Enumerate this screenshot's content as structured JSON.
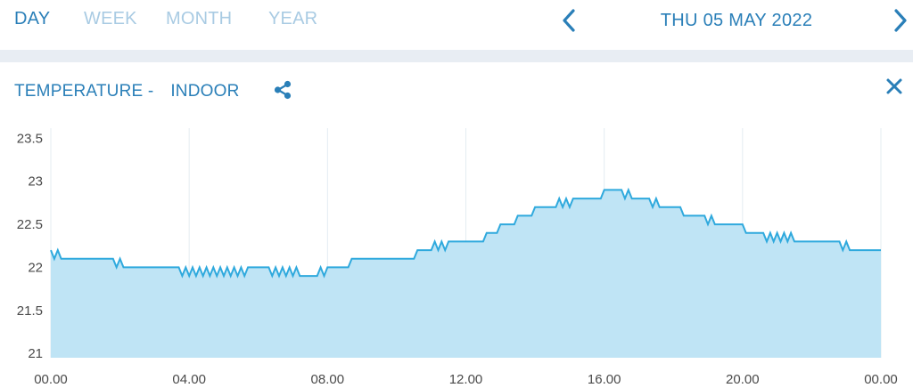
{
  "tabs": [
    {
      "label": "DAY",
      "active": true
    },
    {
      "label": "WEEK",
      "active": false
    },
    {
      "label": "MONTH",
      "active": false
    },
    {
      "label": "YEAR",
      "active": false
    }
  ],
  "date": "THU 05 MAY 2022",
  "card": {
    "title_part1": "TEMPERATURE - ",
    "title_part2": "INDOOR"
  },
  "icons": {
    "prev": "chevron-left-icon",
    "next": "chevron-right-icon",
    "share": "share-icon",
    "close": "close-icon"
  },
  "colors": {
    "accent": "#2a7fb8",
    "inactive_tab": "#a9cbe3",
    "line": "#2fa9dd",
    "fill": "#bfe4f5",
    "separator": "#e8edf3"
  },
  "chart_data": {
    "type": "area",
    "title": "",
    "xlabel": "",
    "ylabel": "",
    "x_ticks": [
      "00.00",
      "04.00",
      "08.00",
      "12.00",
      "16.00",
      "20.00",
      "00.00"
    ],
    "y_ticks": [
      "21",
      "21.5",
      "22",
      "22.5",
      "23",
      "23.5"
    ],
    "xlim": [
      0,
      24
    ],
    "ylim": [
      20.95,
      23.7
    ],
    "grid": "vertical",
    "series": [
      {
        "values": [
          [
            0,
            22.2
          ],
          [
            0.1,
            22.1
          ],
          [
            0.2,
            22.2
          ],
          [
            0.3,
            22.1
          ],
          [
            1.8,
            22.1
          ],
          [
            1.9,
            22.0
          ],
          [
            2.0,
            22.1
          ],
          [
            2.1,
            22.0
          ],
          [
            3.7,
            22.0
          ],
          [
            3.8,
            21.9
          ],
          [
            3.9,
            22.0
          ],
          [
            4.0,
            21.9
          ],
          [
            4.1,
            22.0
          ],
          [
            4.2,
            21.9
          ],
          [
            4.3,
            22.0
          ],
          [
            4.4,
            21.9
          ],
          [
            4.5,
            22.0
          ],
          [
            4.6,
            21.9
          ],
          [
            4.7,
            22.0
          ],
          [
            4.8,
            21.9
          ],
          [
            4.9,
            22.0
          ],
          [
            5.0,
            21.9
          ],
          [
            5.1,
            22.0
          ],
          [
            5.2,
            21.9
          ],
          [
            5.3,
            22.0
          ],
          [
            5.4,
            21.9
          ],
          [
            5.5,
            22.0
          ],
          [
            5.6,
            21.9
          ],
          [
            5.7,
            22.0
          ],
          [
            6.3,
            22.0
          ],
          [
            6.4,
            21.9
          ],
          [
            6.5,
            22.0
          ],
          [
            6.6,
            21.9
          ],
          [
            6.7,
            22.0
          ],
          [
            6.8,
            21.9
          ],
          [
            6.9,
            22.0
          ],
          [
            7.0,
            21.9
          ],
          [
            7.1,
            22.0
          ],
          [
            7.2,
            21.9
          ],
          [
            7.7,
            21.9
          ],
          [
            7.8,
            22.0
          ],
          [
            7.9,
            21.9
          ],
          [
            8.0,
            22.0
          ],
          [
            8.6,
            22.0
          ],
          [
            8.7,
            22.1
          ],
          [
            10.5,
            22.1
          ],
          [
            10.6,
            22.2
          ],
          [
            11.0,
            22.2
          ],
          [
            11.1,
            22.3
          ],
          [
            11.2,
            22.2
          ],
          [
            11.3,
            22.3
          ],
          [
            11.4,
            22.2
          ],
          [
            11.5,
            22.3
          ],
          [
            12.5,
            22.3
          ],
          [
            12.6,
            22.4
          ],
          [
            12.9,
            22.4
          ],
          [
            13.0,
            22.5
          ],
          [
            13.4,
            22.5
          ],
          [
            13.5,
            22.6
          ],
          [
            13.9,
            22.6
          ],
          [
            14.0,
            22.7
          ],
          [
            14.6,
            22.7
          ],
          [
            14.7,
            22.8
          ],
          [
            14.8,
            22.7
          ],
          [
            14.9,
            22.8
          ],
          [
            15.0,
            22.7
          ],
          [
            15.1,
            22.8
          ],
          [
            15.9,
            22.8
          ],
          [
            16.0,
            22.9
          ],
          [
            16.5,
            22.9
          ],
          [
            16.6,
            22.8
          ],
          [
            16.7,
            22.9
          ],
          [
            16.8,
            22.8
          ],
          [
            17.3,
            22.8
          ],
          [
            17.4,
            22.7
          ],
          [
            17.5,
            22.8
          ],
          [
            17.6,
            22.7
          ],
          [
            18.2,
            22.7
          ],
          [
            18.3,
            22.6
          ],
          [
            18.9,
            22.6
          ],
          [
            19.0,
            22.5
          ],
          [
            19.1,
            22.6
          ],
          [
            19.2,
            22.5
          ],
          [
            20.0,
            22.5
          ],
          [
            20.1,
            22.4
          ],
          [
            20.6,
            22.4
          ],
          [
            20.7,
            22.3
          ],
          [
            20.8,
            22.4
          ],
          [
            20.9,
            22.3
          ],
          [
            21.0,
            22.4
          ],
          [
            21.1,
            22.3
          ],
          [
            21.2,
            22.4
          ],
          [
            21.3,
            22.3
          ],
          [
            21.4,
            22.4
          ],
          [
            21.5,
            22.3
          ],
          [
            22.8,
            22.3
          ],
          [
            22.9,
            22.2
          ],
          [
            23.0,
            22.3
          ],
          [
            23.1,
            22.2
          ],
          [
            24.0,
            22.2
          ]
        ]
      }
    ]
  }
}
